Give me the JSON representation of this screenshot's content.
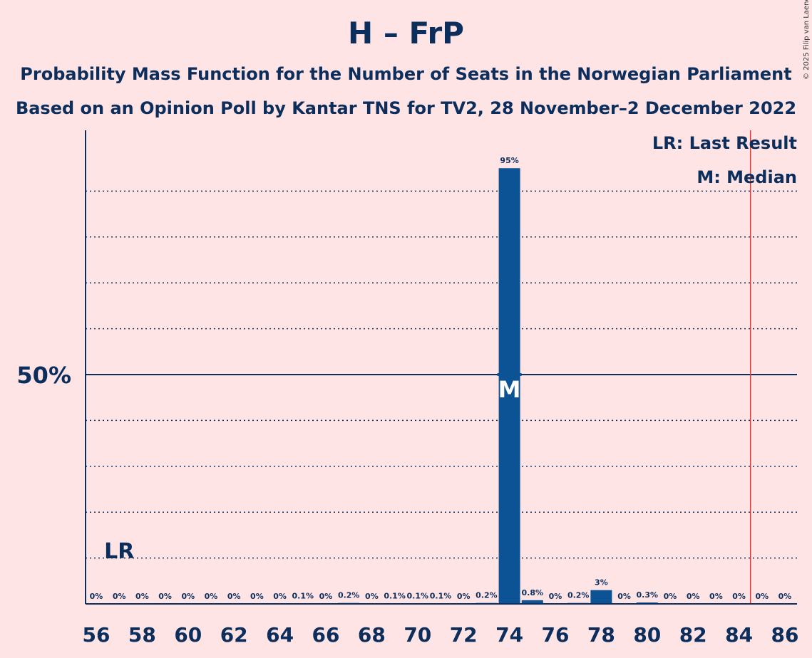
{
  "header": {
    "title": "H – FrP",
    "subtitle1": "Probability Mass Function for the Number of Seats in the Norwegian Parliament",
    "subtitle2": "Based on an Opinion Poll by Kantar TNS for TV2, 28 November–2 December 2022",
    "copyright": "© 2025 Filip van Laenen"
  },
  "legend": {
    "lr": "LR: Last Result",
    "m": "M: Median"
  },
  "colors": {
    "background": "#FFE4E6",
    "bar": "#0B5394",
    "text": "#0B2E5C",
    "last_result_line": "#E53935"
  },
  "chart_data": {
    "type": "bar",
    "x": [
      56,
      57,
      58,
      59,
      60,
      61,
      62,
      63,
      64,
      65,
      66,
      67,
      68,
      69,
      70,
      71,
      72,
      73,
      74,
      75,
      76,
      77,
      78,
      79,
      80,
      81,
      82,
      83,
      84,
      85,
      86
    ],
    "values": [
      0,
      0,
      0,
      0,
      0,
      0,
      0,
      0,
      0,
      0.1,
      0,
      0.2,
      0,
      0.1,
      0.1,
      0.1,
      0,
      0.2,
      95,
      0.8,
      0,
      0.2,
      3,
      0,
      0.3,
      0,
      0,
      0,
      0,
      0,
      0
    ],
    "labels": [
      "0%",
      "0%",
      "0%",
      "0%",
      "0%",
      "0%",
      "0%",
      "0%",
      "0%",
      "0.1%",
      "0%",
      "0.2%",
      "0%",
      "0.1%",
      "0.1%",
      "0.1%",
      "0%",
      "0.2%",
      "95%",
      "0.8%",
      "0%",
      "0.2%",
      "3%",
      "0%",
      "0.3%",
      "0%",
      "0%",
      "0%",
      "0%",
      "0%",
      "0%"
    ],
    "xticks": [
      "56",
      "58",
      "60",
      "62",
      "64",
      "66",
      "68",
      "70",
      "72",
      "74",
      "76",
      "78",
      "80",
      "82",
      "84",
      "86"
    ],
    "ytick_label": "50%",
    "ytick_value": 50,
    "ylim": [
      0,
      100
    ],
    "gridlines": [
      10,
      20,
      30,
      40,
      60,
      70,
      80,
      90
    ],
    "median": 74,
    "median_marker": "M",
    "last_result": 84.5,
    "last_result_marker": "LR",
    "last_result_marker_x": 57
  }
}
